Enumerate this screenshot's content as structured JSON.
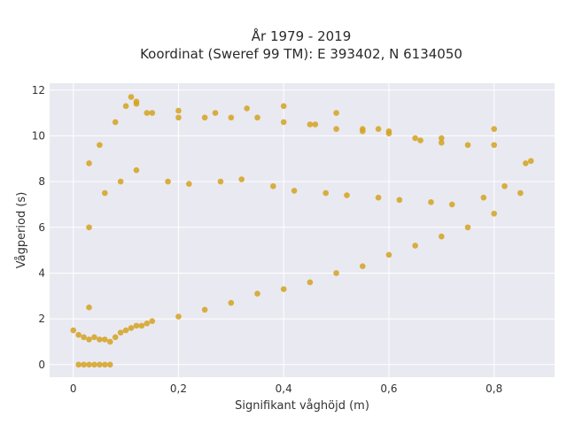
{
  "chart_data": {
    "type": "scatter",
    "title_line1": "År 1979 - 2019",
    "title_line2": "Koordinat (Sweref 99 TM): E 393402, N 6134050",
    "xlabel": "Signifikant våghöjd (m)",
    "ylabel": "Vågperiod (s)",
    "xlim": [
      -0.045,
      0.915
    ],
    "ylim": [
      -0.55,
      12.3
    ],
    "x_ticks": [
      0,
      0.2,
      0.4,
      0.6,
      0.8
    ],
    "x_tick_labels": [
      "0",
      "0,2",
      "0,4",
      "0,6",
      "0,8"
    ],
    "y_ticks": [
      0,
      2,
      4,
      6,
      8,
      10,
      12
    ],
    "y_tick_labels": [
      "0",
      "2",
      "4",
      "6",
      "8",
      "10",
      "12"
    ],
    "grid": true,
    "legend": "none",
    "marker_color": "#d4a21f",
    "plot_background": "#e9e9f1",
    "series": [
      {
        "x": [
          0.0,
          0.01,
          0.02,
          0.03,
          0.03,
          0.04,
          0.05,
          0.06,
          0.07,
          0.08,
          0.09,
          0.1,
          0.11,
          0.12,
          0.13,
          0.14,
          0.15,
          0.2,
          0.25,
          0.3,
          0.35,
          0.4,
          0.45,
          0.5,
          0.55,
          0.6,
          0.65,
          0.7,
          0.75,
          0.8,
          0.85,
          0.87,
          0.03,
          0.05,
          0.08,
          0.1,
          0.12,
          0.15,
          0.2,
          0.25,
          0.3,
          0.35,
          0.4,
          0.45,
          0.5,
          0.55,
          0.6,
          0.65,
          0.7,
          0.75,
          0.8,
          0.86,
          0.11,
          0.12,
          0.14,
          0.2,
          0.27,
          0.33,
          0.4,
          0.46,
          0.5,
          0.55,
          0.58,
          0.6,
          0.66,
          0.7,
          0.8,
          0.01,
          0.02,
          0.03,
          0.04,
          0.05,
          0.06,
          0.07,
          0.03,
          0.06,
          0.09,
          0.12,
          0.18,
          0.22,
          0.28,
          0.32,
          0.38,
          0.42,
          0.48,
          0.52,
          0.58,
          0.62,
          0.68,
          0.72,
          0.78,
          0.82
        ],
        "y": [
          1.5,
          1.3,
          1.2,
          1.1,
          2.5,
          1.2,
          1.1,
          1.1,
          1.0,
          1.2,
          1.4,
          1.5,
          1.6,
          1.7,
          1.7,
          1.8,
          1.9,
          2.1,
          2.4,
          2.7,
          3.1,
          3.3,
          3.6,
          4.0,
          4.3,
          4.8,
          5.2,
          5.6,
          6.0,
          6.6,
          7.5,
          8.9,
          8.8,
          9.6,
          10.6,
          11.3,
          11.5,
          11.0,
          10.8,
          10.8,
          10.8,
          10.8,
          10.6,
          10.5,
          10.3,
          10.3,
          10.1,
          9.9,
          9.7,
          9.6,
          9.6,
          8.8,
          11.7,
          11.4,
          11.0,
          11.1,
          11.0,
          11.2,
          11.3,
          10.5,
          11.0,
          10.2,
          10.3,
          10.2,
          9.8,
          9.9,
          10.3,
          0.0,
          0.0,
          0.0,
          0.0,
          0.0,
          0.0,
          0.0,
          6.0,
          7.5,
          8.0,
          8.5,
          8.0,
          7.9,
          8.0,
          8.1,
          7.8,
          7.6,
          7.5,
          7.4,
          7.3,
          7.2,
          7.1,
          7.0,
          7.3,
          7.8
        ]
      }
    ]
  }
}
